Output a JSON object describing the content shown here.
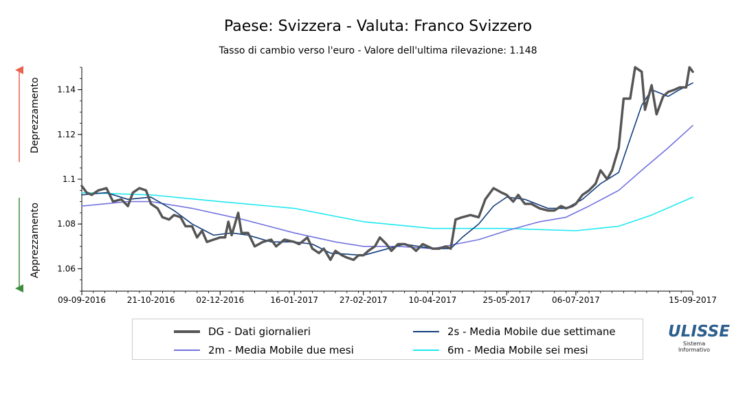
{
  "header": {
    "title": "Paese: Svizzera - Valuta: Franco Svizzero",
    "subtitle": "Tasso di cambio verso l'euro - Valore dell'ultima rilevazione: 1.148"
  },
  "side_labels": {
    "up": "Deprezzamento",
    "down": "Apprezzamento",
    "up_color": "#e8624f",
    "down_color": "#3d8c3d"
  },
  "logo": {
    "name": "ULISSE",
    "line1": "Sistema",
    "line2": "Informativo",
    "color": "#2c5f8d"
  },
  "chart_data": {
    "type": "line",
    "title": "Paese: Svizzera - Valuta: Franco Svizzero",
    "subtitle": "Tasso di cambio verso l'euro - Valore dell'ultima rilevazione: 1.148",
    "xlabel": "",
    "ylabel": "",
    "x_range": [
      "09-09-2016",
      "15-09-2017"
    ],
    "ylim": [
      1.05,
      1.15
    ],
    "y_ticks": [
      1.06,
      1.08,
      1.1,
      1.12,
      1.14
    ],
    "x_ticks": [
      "09-09-2016",
      "21-10-2016",
      "02-12-2016",
      "16-01-2017",
      "27-02-2017",
      "10-04-2017",
      "25-05-2017",
      "06-07-2017",
      "15-09-2017"
    ],
    "grid": false,
    "legend_position": "bottom",
    "series": [
      {
        "id": "dg",
        "name": "DG - Dati giornalieri",
        "color": "#555555",
        "width": 3.5,
        "points": [
          [
            "09-09-2016",
            1.097
          ],
          [
            "12-09-2016",
            1.094
          ],
          [
            "15-09-2016",
            1.093
          ],
          [
            "19-09-2016",
            1.095
          ],
          [
            "24-09-2016",
            1.096
          ],
          [
            "28-09-2016",
            1.09
          ],
          [
            "03-10-2016",
            1.091
          ],
          [
            "07-10-2016",
            1.088
          ],
          [
            "10-10-2016",
            1.094
          ],
          [
            "14-10-2016",
            1.096
          ],
          [
            "18-10-2016",
            1.095
          ],
          [
            "21-10-2016",
            1.089
          ],
          [
            "25-10-2016",
            1.087
          ],
          [
            "28-10-2016",
            1.083
          ],
          [
            "01-11-2016",
            1.082
          ],
          [
            "04-11-2016",
            1.084
          ],
          [
            "08-11-2016",
            1.083
          ],
          [
            "11-11-2016",
            1.079
          ],
          [
            "15-11-2016",
            1.079
          ],
          [
            "18-11-2016",
            1.074
          ],
          [
            "21-11-2016",
            1.077
          ],
          [
            "24-11-2016",
            1.072
          ],
          [
            "28-11-2016",
            1.073
          ],
          [
            "02-12-2016",
            1.074
          ],
          [
            "05-12-2016",
            1.074
          ],
          [
            "07-12-2016",
            1.081
          ],
          [
            "09-12-2016",
            1.075
          ],
          [
            "13-12-2016",
            1.085
          ],
          [
            "15-12-2016",
            1.076
          ],
          [
            "19-12-2016",
            1.076
          ],
          [
            "23-12-2016",
            1.07
          ],
          [
            "28-12-2016",
            1.072
          ],
          [
            "02-01-2017",
            1.073
          ],
          [
            "05-01-2017",
            1.07
          ],
          [
            "10-01-2017",
            1.073
          ],
          [
            "16-01-2017",
            1.072
          ],
          [
            "19-01-2017",
            1.071
          ],
          [
            "24-01-2017",
            1.074
          ],
          [
            "27-01-2017",
            1.069
          ],
          [
            "31-01-2017",
            1.067
          ],
          [
            "03-02-2017",
            1.069
          ],
          [
            "07-02-2017",
            1.064
          ],
          [
            "10-02-2017",
            1.068
          ],
          [
            "14-02-2017",
            1.066
          ],
          [
            "17-02-2017",
            1.065
          ],
          [
            "21-02-2017",
            1.064
          ],
          [
            "24-02-2017",
            1.066
          ],
          [
            "27-02-2017",
            1.066
          ],
          [
            "02-03-2017",
            1.068
          ],
          [
            "06-03-2017",
            1.07
          ],
          [
            "09-03-2017",
            1.074
          ],
          [
            "13-03-2017",
            1.071
          ],
          [
            "16-03-2017",
            1.068
          ],
          [
            "20-03-2017",
            1.071
          ],
          [
            "24-03-2017",
            1.071
          ],
          [
            "28-03-2017",
            1.07
          ],
          [
            "31-03-2017",
            1.068
          ],
          [
            "04-04-2017",
            1.071
          ],
          [
            "10-04-2017",
            1.069
          ],
          [
            "14-04-2017",
            1.069
          ],
          [
            "18-04-2017",
            1.07
          ],
          [
            "21-04-2017",
            1.069
          ],
          [
            "24-04-2017",
            1.082
          ],
          [
            "28-04-2017",
            1.083
          ],
          [
            "03-05-2017",
            1.084
          ],
          [
            "08-05-2017",
            1.083
          ],
          [
            "12-05-2017",
            1.091
          ],
          [
            "17-05-2017",
            1.096
          ],
          [
            "22-05-2017",
            1.094
          ],
          [
            "25-05-2017",
            1.093
          ],
          [
            "29-05-2017",
            1.09
          ],
          [
            "01-06-2017",
            1.093
          ],
          [
            "05-06-2017",
            1.089
          ],
          [
            "09-06-2017",
            1.089
          ],
          [
            "14-06-2017",
            1.087
          ],
          [
            "19-06-2017",
            1.086
          ],
          [
            "23-06-2017",
            1.086
          ],
          [
            "27-06-2017",
            1.088
          ],
          [
            "30-06-2017",
            1.087
          ],
          [
            "04-07-2017",
            1.088
          ],
          [
            "06-07-2017",
            1.089
          ],
          [
            "10-07-2017",
            1.093
          ],
          [
            "14-07-2017",
            1.095
          ],
          [
            "18-07-2017",
            1.098
          ],
          [
            "21-07-2017",
            1.104
          ],
          [
            "25-07-2017",
            1.1
          ],
          [
            "28-07-2017",
            1.104
          ],
          [
            "01-08-2017",
            1.114
          ],
          [
            "04-08-2017",
            1.136
          ],
          [
            "08-08-2017",
            1.136
          ],
          [
            "11-08-2017",
            1.15
          ],
          [
            "15-08-2017",
            1.148
          ],
          [
            "17-08-2017",
            1.131
          ],
          [
            "21-08-2017",
            1.142
          ],
          [
            "24-08-2017",
            1.129
          ],
          [
            "28-08-2017",
            1.137
          ],
          [
            "31-08-2017",
            1.139
          ],
          [
            "04-09-2017",
            1.14
          ],
          [
            "07-09-2017",
            1.141
          ],
          [
            "11-09-2017",
            1.141
          ],
          [
            "13-09-2017",
            1.15
          ],
          [
            "15-09-2017",
            1.148
          ]
        ]
      },
      {
        "id": "ma2s",
        "name": "2s - Media Mobile due settimane",
        "color": "#0f3c7c",
        "width": 1.6,
        "points": [
          [
            "09-09-2016",
            1.093
          ],
          [
            "24-09-2016",
            1.094
          ],
          [
            "07-10-2016",
            1.091
          ],
          [
            "21-10-2016",
            1.092
          ],
          [
            "04-11-2016",
            1.086
          ],
          [
            "15-11-2016",
            1.08
          ],
          [
            "28-11-2016",
            1.075
          ],
          [
            "09-12-2016",
            1.076
          ],
          [
            "19-12-2016",
            1.075
          ],
          [
            "02-01-2017",
            1.072
          ],
          [
            "16-01-2017",
            1.072
          ],
          [
            "27-01-2017",
            1.071
          ],
          [
            "07-02-2017",
            1.067
          ],
          [
            "27-02-2017",
            1.066
          ],
          [
            "09-03-2017",
            1.068
          ],
          [
            "24-03-2017",
            1.071
          ],
          [
            "10-04-2017",
            1.069
          ],
          [
            "21-04-2017",
            1.069
          ],
          [
            "28-04-2017",
            1.074
          ],
          [
            "08-05-2017",
            1.08
          ],
          [
            "17-05-2017",
            1.088
          ],
          [
            "25-05-2017",
            1.092
          ],
          [
            "05-06-2017",
            1.091
          ],
          [
            "19-06-2017",
            1.087
          ],
          [
            "30-06-2017",
            1.087
          ],
          [
            "10-07-2017",
            1.091
          ],
          [
            "21-07-2017",
            1.098
          ],
          [
            "01-08-2017",
            1.103
          ],
          [
            "08-08-2017",
            1.118
          ],
          [
            "15-08-2017",
            1.133
          ],
          [
            "21-08-2017",
            1.14
          ],
          [
            "31-08-2017",
            1.137
          ],
          [
            "07-09-2017",
            1.14
          ],
          [
            "15-09-2017",
            1.143
          ]
        ]
      },
      {
        "id": "ma2m",
        "name": "2m - Media Mobile due mesi",
        "color": "#7272e0",
        "width": 1.6,
        "points": [
          [
            "09-09-2016",
            1.088
          ],
          [
            "07-10-2016",
            1.09
          ],
          [
            "21-10-2016",
            1.09
          ],
          [
            "15-11-2016",
            1.087
          ],
          [
            "16-12-2016",
            1.082
          ],
          [
            "16-01-2017",
            1.076
          ],
          [
            "10-02-2017",
            1.072
          ],
          [
            "27-02-2017",
            1.07
          ],
          [
            "20-03-2017",
            1.07
          ],
          [
            "10-04-2017",
            1.069
          ],
          [
            "08-05-2017",
            1.073
          ],
          [
            "25-05-2017",
            1.077
          ],
          [
            "14-06-2017",
            1.081
          ],
          [
            "30-06-2017",
            1.083
          ],
          [
            "14-07-2017",
            1.088
          ],
          [
            "01-08-2017",
            1.095
          ],
          [
            "15-08-2017",
            1.104
          ],
          [
            "31-08-2017",
            1.114
          ],
          [
            "15-09-2017",
            1.124
          ]
        ]
      },
      {
        "id": "ma6m",
        "name": "6m - Media Mobile sei mesi",
        "color": "#1ee8f0",
        "width": 1.6,
        "points": [
          [
            "09-09-2016",
            1.094
          ],
          [
            "21-10-2016",
            1.093
          ],
          [
            "02-12-2016",
            1.09
          ],
          [
            "16-01-2017",
            1.087
          ],
          [
            "27-02-2017",
            1.081
          ],
          [
            "10-04-2017",
            1.078
          ],
          [
            "25-05-2017",
            1.078
          ],
          [
            "06-07-2017",
            1.077
          ],
          [
            "01-08-2017",
            1.079
          ],
          [
            "21-08-2017",
            1.084
          ],
          [
            "15-09-2017",
            1.092
          ]
        ]
      }
    ],
    "legend_order": [
      "dg",
      "ma2s",
      "ma2m",
      "ma6m"
    ]
  }
}
